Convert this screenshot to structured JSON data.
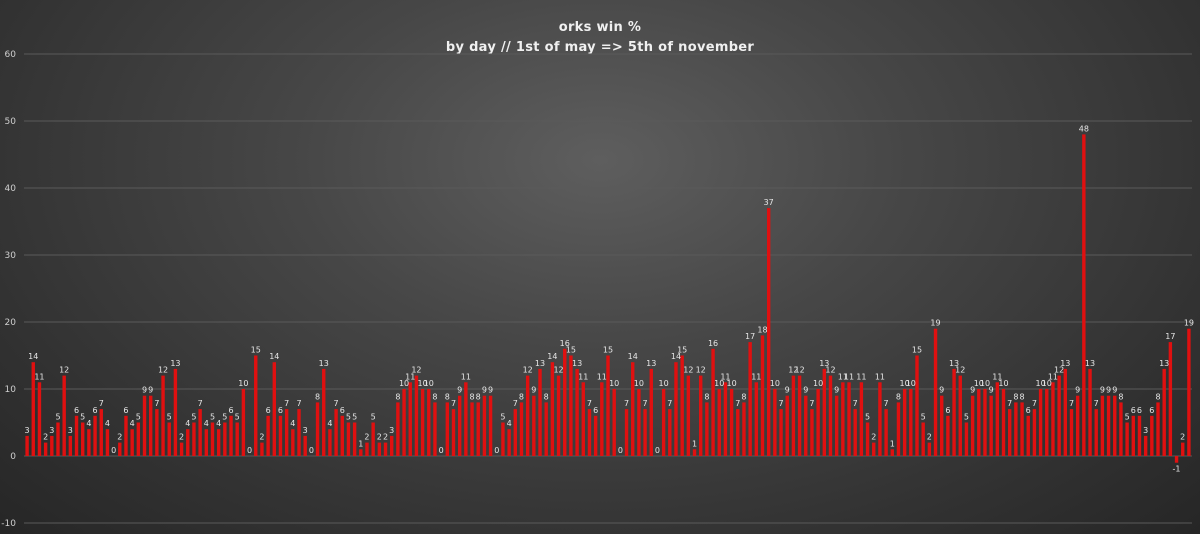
{
  "chart_data": {
    "type": "bar",
    "title": "orks  win %",
    "subtitle": "by day // 1st of may => 5th of november",
    "xlabel": "",
    "ylabel": "",
    "ylim": [
      -10,
      60
    ],
    "yticks": [
      -10,
      0,
      10,
      20,
      30,
      40,
      50,
      60
    ],
    "grid": true,
    "bar_color": "#e01010",
    "values": [
      3,
      14,
      11,
      2,
      3,
      5,
      12,
      3,
      6,
      5,
      4,
      6,
      7,
      4,
      0,
      2,
      6,
      4,
      5,
      9,
      9,
      7,
      12,
      5,
      13,
      2,
      4,
      5,
      7,
      4,
      5,
      4,
      5,
      6,
      5,
      10,
      0,
      15,
      2,
      6,
      14,
      6,
      7,
      4,
      7,
      3,
      0,
      8,
      13,
      4,
      7,
      6,
      5,
      5,
      1,
      2,
      5,
      2,
      2,
      3,
      8,
      10,
      11,
      12,
      10,
      10,
      8,
      0,
      8,
      7,
      9,
      11,
      8,
      8,
      9,
      9,
      0,
      5,
      4,
      7,
      8,
      12,
      9,
      13,
      8,
      14,
      12,
      16,
      15,
      13,
      11,
      7,
      6,
      11,
      15,
      10,
      0,
      7,
      14,
      10,
      7,
      13,
      0,
      10,
      7,
      14,
      15,
      12,
      1,
      12,
      8,
      16,
      10,
      11,
      10,
      7,
      8,
      17,
      11,
      18,
      37,
      10,
      7,
      9,
      12,
      12,
      9,
      7,
      10,
      13,
      12,
      9,
      11,
      11,
      7,
      11,
      5,
      2,
      11,
      7,
      1,
      8,
      10,
      10,
      15,
      5,
      2,
      19,
      9,
      6,
      13,
      12,
      5,
      9,
      10,
      10,
      9,
      11,
      10,
      7,
      8,
      8,
      6,
      7,
      10,
      10,
      11,
      12,
      13,
      7,
      9,
      48,
      13,
      7,
      9,
      9,
      9,
      8,
      5,
      6,
      6,
      3,
      6,
      8,
      13,
      17,
      -1,
      2,
      19
    ]
  }
}
